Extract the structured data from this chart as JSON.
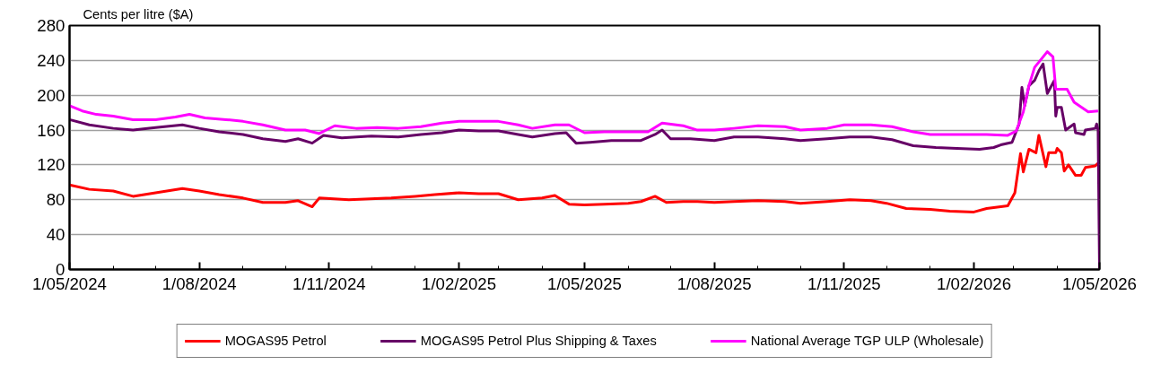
{
  "chart_data": {
    "type": "line",
    "ylabel": "Cents per litre ($A)",
    "xlim": [
      "2024-05-01",
      "2026-05-01"
    ],
    "ylim": [
      0,
      280
    ],
    "yticks": [
      0,
      40,
      80,
      120,
      160,
      200,
      240,
      280
    ],
    "xticks": [
      {
        "value": "2024-05-01",
        "label": "1/05/2024"
      },
      {
        "value": "2024-06-01",
        "label": null
      },
      {
        "value": "2024-07-01",
        "label": null
      },
      {
        "value": "2024-08-01",
        "label": "1/08/2024"
      },
      {
        "value": "2024-09-01",
        "label": null
      },
      {
        "value": "2024-10-01",
        "label": null
      },
      {
        "value": "2024-11-01",
        "label": "1/11/2024"
      },
      {
        "value": "2024-12-01",
        "label": null
      },
      {
        "value": "2025-01-01",
        "label": null
      },
      {
        "value": "2025-02-01",
        "label": "1/02/2025"
      },
      {
        "value": "2025-03-01",
        "label": null
      },
      {
        "value": "2025-04-01",
        "label": null
      },
      {
        "value": "2025-05-01",
        "label": "1/05/2025"
      },
      {
        "value": "2025-06-01",
        "label": null
      },
      {
        "value": "2025-07-01",
        "label": null
      },
      {
        "value": "2025-08-01",
        "label": "1/08/2025"
      },
      {
        "value": "2025-09-01",
        "label": null
      },
      {
        "value": "2025-10-01",
        "label": null
      },
      {
        "value": "2025-11-01",
        "label": "1/11/2025"
      },
      {
        "value": "2025-12-01",
        "label": null
      },
      {
        "value": "2026-01-01",
        "label": null
      },
      {
        "value": "2026-02-01",
        "label": "1/02/2026"
      },
      {
        "value": "2026-03-01",
        "label": null
      },
      {
        "value": "2026-04-01",
        "label": null
      },
      {
        "value": "2026-05-01",
        "label": "1/05/2026"
      }
    ],
    "grid": "y",
    "legend": "bottom",
    "line_style": "solid",
    "marker": "none",
    "series": [
      {
        "name": "MOGAS95 Petrol",
        "color": "#ff0000",
        "x": [
          "2024-05-01",
          "2024-05-15",
          "2024-06-01",
          "2024-06-15",
          "2024-07-01",
          "2024-07-20",
          "2024-08-01",
          "2024-08-15",
          "2024-09-01",
          "2024-09-15",
          "2024-10-01",
          "2024-10-10",
          "2024-10-20",
          "2024-10-25",
          "2024-11-15",
          "2024-12-15",
          "2025-01-01",
          "2025-01-15",
          "2025-02-01",
          "2025-02-15",
          "2025-03-01",
          "2025-03-15",
          "2025-04-01",
          "2025-04-10",
          "2025-04-20",
          "2025-05-01",
          "2025-05-15",
          "2025-06-01",
          "2025-06-10",
          "2025-06-20",
          "2025-06-28",
          "2025-07-10",
          "2025-07-20",
          "2025-08-01",
          "2025-08-15",
          "2025-09-01",
          "2025-09-20",
          "2025-10-01",
          "2025-10-20",
          "2025-11-05",
          "2025-11-20",
          "2025-12-01",
          "2025-12-15",
          "2026-01-01",
          "2026-01-15",
          "2026-02-01",
          "2026-02-10",
          "2026-02-20",
          "2026-02-25",
          "2026-03-02",
          "2026-03-06",
          "2026-03-08",
          "2026-03-12",
          "2026-03-17",
          "2026-03-19",
          "2026-03-24",
          "2026-03-26",
          "2026-03-31",
          "2026-04-01",
          "2026-04-04",
          "2026-04-06",
          "2026-04-09",
          "2026-04-14",
          "2026-04-18",
          "2026-04-21",
          "2026-04-28",
          "2026-04-30"
        ],
        "values": [
          97,
          92,
          90,
          84,
          88,
          93,
          90,
          86,
          82,
          77,
          77,
          79,
          72,
          82,
          80,
          82,
          84,
          86,
          88,
          87,
          87,
          80,
          82,
          85,
          75,
          74,
          75,
          76,
          78,
          84,
          77,
          78,
          78,
          77,
          78,
          79,
          78,
          76,
          78,
          80,
          79,
          76,
          70,
          69,
          67,
          66,
          70,
          72,
          73,
          88,
          133,
          112,
          138,
          134,
          154,
          118,
          134,
          134,
          139,
          134,
          113,
          120,
          108,
          108,
          117,
          119,
          122
        ]
      },
      {
        "name": "MOGAS95 Petrol Plus Shipping & Taxes",
        "color": "#660066",
        "x": [
          "2024-05-01",
          "2024-05-15",
          "2024-06-01",
          "2024-06-15",
          "2024-07-01",
          "2024-07-20",
          "2024-08-01",
          "2024-08-15",
          "2024-09-01",
          "2024-09-15",
          "2024-10-01",
          "2024-10-10",
          "2024-10-20",
          "2024-10-28",
          "2024-11-10",
          "2024-12-01",
          "2024-12-20",
          "2025-01-05",
          "2025-01-20",
          "2025-02-01",
          "2025-02-15",
          "2025-03-01",
          "2025-03-15",
          "2025-03-25",
          "2025-04-10",
          "2025-04-18",
          "2025-04-25",
          "2025-05-05",
          "2025-05-20",
          "2025-06-10",
          "2025-06-20",
          "2025-06-25",
          "2025-07-01",
          "2025-07-15",
          "2025-08-01",
          "2025-08-15",
          "2025-09-01",
          "2025-09-20",
          "2025-10-01",
          "2025-10-20",
          "2025-11-05",
          "2025-11-20",
          "2025-12-05",
          "2025-12-20",
          "2026-01-05",
          "2026-01-20",
          "2026-02-05",
          "2026-02-15",
          "2026-02-20",
          "2026-02-28",
          "2026-03-05",
          "2026-03-07",
          "2026-03-09",
          "2026-03-12",
          "2026-03-16",
          "2026-03-19",
          "2026-03-22",
          "2026-03-25",
          "2026-03-30",
          "2026-03-31",
          "2026-04-01",
          "2026-04-04",
          "2026-04-07",
          "2026-04-13",
          "2026-04-14",
          "2026-04-20",
          "2026-04-21",
          "2026-04-28",
          "2026-04-29",
          "2026-04-30",
          "2026-05-01"
        ],
        "values": [
          172,
          166,
          162,
          160,
          163,
          166,
          162,
          158,
          155,
          150,
          147,
          150,
          145,
          154,
          151,
          153,
          152,
          155,
          157,
          160,
          159,
          159,
          155,
          152,
          156,
          157,
          145,
          146,
          148,
          148,
          155,
          160,
          150,
          150,
          148,
          152,
          152,
          150,
          148,
          150,
          152,
          152,
          149,
          142,
          140,
          139,
          138,
          140,
          143,
          146,
          167,
          209,
          188,
          211,
          217,
          228,
          236,
          202,
          217,
          176,
          186,
          186,
          160,
          167,
          157,
          155,
          160,
          162,
          167,
          160,
          0
        ]
      },
      {
        "name": "National Average TGP ULP (Wholesale)",
        "color": "#ff00ff",
        "x": [
          "2024-05-01",
          "2024-05-10",
          "2024-05-20",
          "2024-06-01",
          "2024-06-15",
          "2024-07-01",
          "2024-07-15",
          "2024-07-25",
          "2024-08-05",
          "2024-08-20",
          "2024-09-01",
          "2024-09-15",
          "2024-10-01",
          "2024-10-15",
          "2024-10-25",
          "2024-11-05",
          "2024-11-20",
          "2024-12-05",
          "2024-12-20",
          "2025-01-05",
          "2025-01-20",
          "2025-02-01",
          "2025-02-15",
          "2025-03-01",
          "2025-03-15",
          "2025-03-25",
          "2025-04-10",
          "2025-04-20",
          "2025-05-01",
          "2025-05-15",
          "2025-06-01",
          "2025-06-15",
          "2025-06-25",
          "2025-07-10",
          "2025-07-20",
          "2025-08-01",
          "2025-08-15",
          "2025-09-01",
          "2025-09-20",
          "2025-10-01",
          "2025-10-20",
          "2025-11-01",
          "2025-11-20",
          "2025-12-05",
          "2025-12-20",
          "2026-01-01",
          "2026-01-20",
          "2026-02-10",
          "2026-02-25",
          "2026-03-03",
          "2026-03-08",
          "2026-03-12",
          "2026-03-16",
          "2026-03-25",
          "2026-03-29",
          "2026-03-31",
          "2026-04-08",
          "2026-04-13",
          "2026-04-23",
          "2026-04-30"
        ],
        "values": [
          188,
          182,
          178,
          176,
          172,
          172,
          175,
          178,
          174,
          172,
          170,
          166,
          160,
          160,
          156,
          165,
          162,
          163,
          162,
          164,
          168,
          170,
          170,
          170,
          166,
          162,
          166,
          166,
          157,
          158,
          158,
          158,
          168,
          165,
          160,
          160,
          162,
          165,
          164,
          160,
          162,
          166,
          166,
          164,
          158,
          155,
          155,
          155,
          154,
          159,
          181,
          211,
          232,
          250,
          244,
          207,
          207,
          192,
          181,
          182
        ]
      }
    ]
  }
}
